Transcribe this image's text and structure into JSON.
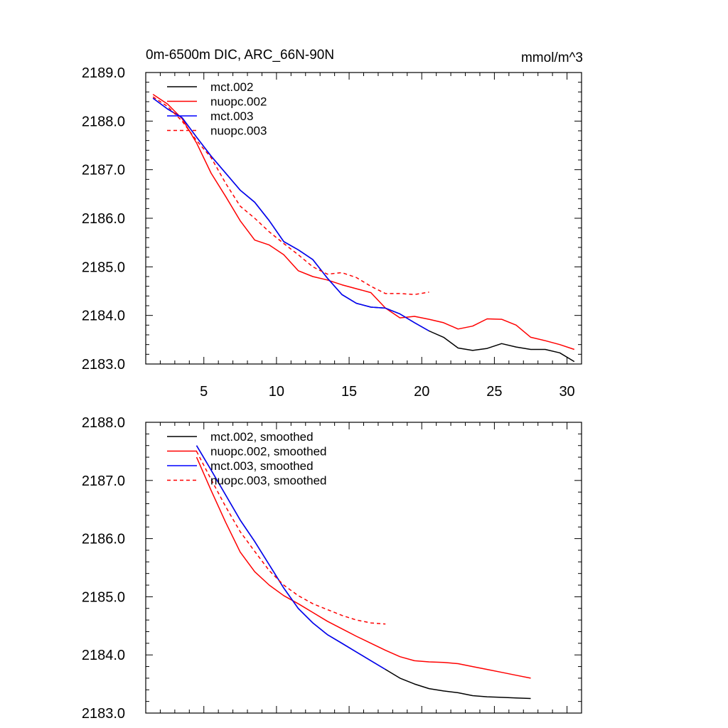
{
  "chart_data": [
    {
      "type": "line",
      "title": "0m-6500m DIC, ARC_66N-90N",
      "units": "mmol/m^3",
      "xlabel": "",
      "ylabel": "",
      "xlim": [
        1,
        31
      ],
      "ylim": [
        2183.0,
        2189.0
      ],
      "xticks": [
        5,
        10,
        15,
        20,
        25,
        30
      ],
      "xtick_labels": [
        "5",
        "10",
        "15",
        "20",
        "25",
        "30"
      ],
      "yticks": [
        2183,
        2184,
        2185,
        2186,
        2187,
        2188,
        2189
      ],
      "ytick_labels": [
        "2183.0",
        "2184.0",
        "2185.0",
        "2186.0",
        "2187.0",
        "2188.0",
        "2189.0"
      ],
      "legend_position": "top-left",
      "series": [
        {
          "name": "mct.002",
          "color": "#000000",
          "dash": "solid",
          "x": [
            1.5,
            2.5,
            3.5,
            4.5,
            5.5,
            6.5,
            7.5,
            8.5,
            9.5,
            10.5,
            11.5,
            12.5,
            13.5,
            14.5,
            15.5,
            16.5,
            17.5,
            18.5,
            19.5,
            20.5,
            21.5,
            22.5,
            23.5,
            24.5,
            25.5,
            26.5,
            27.5,
            28.5,
            29.5,
            30.5
          ],
          "y": [
            2188.47,
            2188.25,
            2188.07,
            2187.67,
            2187.28,
            2186.93,
            2186.58,
            2186.33,
            2185.95,
            2185.52,
            2185.35,
            2185.15,
            2184.77,
            2184.43,
            2184.25,
            2184.17,
            2184.15,
            2184.03,
            2183.85,
            2183.68,
            2183.55,
            2183.33,
            2183.28,
            2183.32,
            2183.42,
            2183.35,
            2183.3,
            2183.3,
            2183.23,
            2183.05
          ]
        },
        {
          "name": "nuopc.002",
          "color": "#ff0000",
          "dash": "solid",
          "x": [
            1.5,
            2.5,
            3.5,
            4.5,
            5.5,
            6.5,
            7.5,
            8.5,
            9.5,
            10.5,
            11.5,
            12.5,
            13.5,
            14.5,
            15.5,
            16.5,
            17.5,
            18.5,
            19.5,
            20.5,
            21.5,
            22.5,
            23.5,
            24.5,
            25.5,
            26.5,
            27.5,
            28.5,
            29.5,
            30.5
          ],
          "y": [
            2188.55,
            2188.35,
            2188.05,
            2187.55,
            2186.93,
            2186.45,
            2185.95,
            2185.55,
            2185.45,
            2185.25,
            2184.92,
            2184.8,
            2184.73,
            2184.63,
            2184.55,
            2184.47,
            2184.15,
            2183.95,
            2183.98,
            2183.92,
            2183.85,
            2183.72,
            2183.78,
            2183.93,
            2183.92,
            2183.8,
            2183.55,
            2183.48,
            2183.4,
            2183.3
          ]
        },
        {
          "name": "mct.003",
          "color": "#0000ff",
          "dash": "solid",
          "x": [
            1.5,
            2.5,
            3.5,
            4.5,
            5.5,
            6.5,
            7.5,
            8.5,
            9.5,
            10.5,
            11.5,
            12.5,
            13.5,
            14.5,
            15.5,
            16.5,
            17.5,
            18.5,
            19.5,
            20.5
          ],
          "y": [
            2188.47,
            2188.25,
            2188.07,
            2187.67,
            2187.28,
            2186.93,
            2186.58,
            2186.33,
            2185.95,
            2185.52,
            2185.35,
            2185.15,
            2184.77,
            2184.43,
            2184.25,
            2184.17,
            2184.15,
            2184.03,
            2183.85,
            2183.68
          ]
        },
        {
          "name": "nuopc.003",
          "color": "#ff0000",
          "dash": "dashed",
          "x": [
            1.5,
            2.5,
            3.5,
            4.5,
            5.5,
            6.5,
            7.5,
            8.5,
            9.5,
            10.5,
            11.5,
            12.5,
            13.5,
            14.5,
            15.5,
            16.5,
            17.5,
            18.5,
            19.5,
            20.5
          ],
          "y": [
            2188.5,
            2188.3,
            2188.0,
            2187.6,
            2187.25,
            2186.72,
            2186.25,
            2186.0,
            2185.72,
            2185.48,
            2185.25,
            2185.0,
            2184.85,
            2184.88,
            2184.78,
            2184.6,
            2184.45,
            2184.45,
            2184.43,
            2184.48
          ]
        }
      ]
    },
    {
      "type": "line",
      "title": "",
      "xlabel": "",
      "ylabel": "",
      "xlim": [
        1,
        31
      ],
      "ylim": [
        2183.0,
        2188.0
      ],
      "xticks": [
        5,
        10,
        15,
        20,
        25,
        30
      ],
      "xtick_labels": [],
      "yticks": [
        2183,
        2184,
        2185,
        2186,
        2187,
        2188
      ],
      "ytick_labels": [
        "2183.0",
        "2184.0",
        "2185.0",
        "2186.0",
        "2187.0",
        "2188.0"
      ],
      "legend_position": "top-left",
      "series": [
        {
          "name": "mct.002, smoothed",
          "color": "#000000",
          "dash": "solid",
          "x": [
            4.5,
            5.5,
            6.5,
            7.5,
            8.5,
            9.5,
            10.5,
            11.5,
            12.5,
            13.5,
            14.5,
            15.5,
            16.5,
            17.5,
            18.5,
            19.5,
            20.5,
            21.5,
            22.5,
            23.5,
            24.5,
            25.5,
            26.5,
            27.5
          ],
          "y": [
            2187.6,
            2187.18,
            2186.75,
            2186.32,
            2185.95,
            2185.55,
            2185.15,
            2184.8,
            2184.55,
            2184.35,
            2184.2,
            2184.05,
            2183.9,
            2183.75,
            2183.6,
            2183.5,
            2183.42,
            2183.38,
            2183.35,
            2183.3,
            2183.28,
            2183.27,
            2183.26,
            2183.25
          ]
        },
        {
          "name": "nuopc.002, smoothed",
          "color": "#ff0000",
          "dash": "solid",
          "x": [
            4.5,
            5.5,
            6.5,
            7.5,
            8.5,
            9.5,
            10.5,
            11.5,
            12.5,
            13.5,
            14.5,
            15.5,
            16.5,
            17.5,
            18.5,
            19.5,
            20.5,
            21.5,
            22.5,
            23.5,
            24.5,
            25.5,
            26.5,
            27.5
          ],
          "y": [
            2187.4,
            2186.83,
            2186.28,
            2185.77,
            2185.43,
            2185.2,
            2185.02,
            2184.88,
            2184.73,
            2184.58,
            2184.45,
            2184.32,
            2184.2,
            2184.08,
            2183.97,
            2183.9,
            2183.88,
            2183.87,
            2183.85,
            2183.8,
            2183.75,
            2183.7,
            2183.65,
            2183.6
          ]
        },
        {
          "name": "mct.003, smoothed",
          "color": "#0000ff",
          "dash": "solid",
          "x": [
            4.5,
            5.5,
            6.5,
            7.5,
            8.5,
            9.5,
            10.5,
            11.5,
            12.5,
            13.5,
            14.5,
            15.5,
            16.5,
            17.5
          ],
          "y": [
            2187.6,
            2187.18,
            2186.75,
            2186.32,
            2185.95,
            2185.55,
            2185.15,
            2184.8,
            2184.55,
            2184.35,
            2184.2,
            2184.05,
            2183.9,
            2183.75
          ]
        },
        {
          "name": "nuopc.003, smoothed",
          "color": "#ff0000",
          "dash": "dashed",
          "x": [
            4.5,
            5.5,
            6.5,
            7.5,
            8.5,
            9.5,
            10.5,
            11.5,
            12.5,
            13.5,
            14.5,
            15.5,
            16.5,
            17.5
          ],
          "y": [
            2187.5,
            2187.02,
            2186.55,
            2186.12,
            2185.78,
            2185.45,
            2185.2,
            2185.02,
            2184.88,
            2184.78,
            2184.68,
            2184.6,
            2184.55,
            2184.53
          ]
        }
      ]
    }
  ]
}
